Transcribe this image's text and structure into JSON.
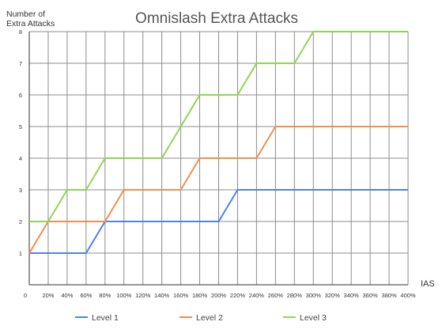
{
  "chart_data": {
    "type": "line",
    "title": "Omnislash Extra Attacks",
    "xlabel": "IAS",
    "ylabel_line1": "Number of",
    "ylabel_line2": "Extra Attacks",
    "x": [
      0,
      20,
      40,
      60,
      80,
      100,
      120,
      140,
      160,
      180,
      200,
      220,
      240,
      260,
      280,
      300,
      320,
      340,
      360,
      380,
      400
    ],
    "x_tick_labels": [
      "0",
      "20%",
      "40%",
      "60%",
      "80%",
      "100%",
      "120%",
      "140%",
      "160%",
      "180%",
      "200%",
      "220%",
      "240%",
      "260%",
      "280%",
      "300%",
      "320%",
      "340%",
      "360%",
      "380%",
      "400%"
    ],
    "y_ticks": [
      1,
      2,
      3,
      4,
      5,
      6,
      7,
      8
    ],
    "xlim": [
      0,
      400
    ],
    "ylim": [
      0,
      8
    ],
    "grid": true,
    "legend_position": "bottom",
    "series": [
      {
        "name": "Level 1",
        "color": "#4a86e8",
        "points": [
          [
            0,
            1
          ],
          [
            60,
            1
          ],
          [
            80,
            2
          ],
          [
            200,
            2
          ],
          [
            220,
            3
          ],
          [
            400,
            3
          ]
        ]
      },
      {
        "name": "Level 2",
        "color": "#f0904a",
        "points": [
          [
            0,
            1
          ],
          [
            20,
            2
          ],
          [
            80,
            2
          ],
          [
            100,
            3
          ],
          [
            160,
            3
          ],
          [
            180,
            4
          ],
          [
            240,
            4
          ],
          [
            260,
            5
          ],
          [
            400,
            5
          ]
        ]
      },
      {
        "name": "Level 3",
        "color": "#8fd650",
        "points": [
          [
            0,
            2
          ],
          [
            20,
            2
          ],
          [
            40,
            3
          ],
          [
            60,
            3
          ],
          [
            80,
            4
          ],
          [
            140,
            4
          ],
          [
            180,
            6
          ],
          [
            220,
            6
          ],
          [
            240,
            7
          ],
          [
            280,
            7
          ],
          [
            300,
            8
          ],
          [
            400,
            8
          ]
        ]
      }
    ]
  }
}
